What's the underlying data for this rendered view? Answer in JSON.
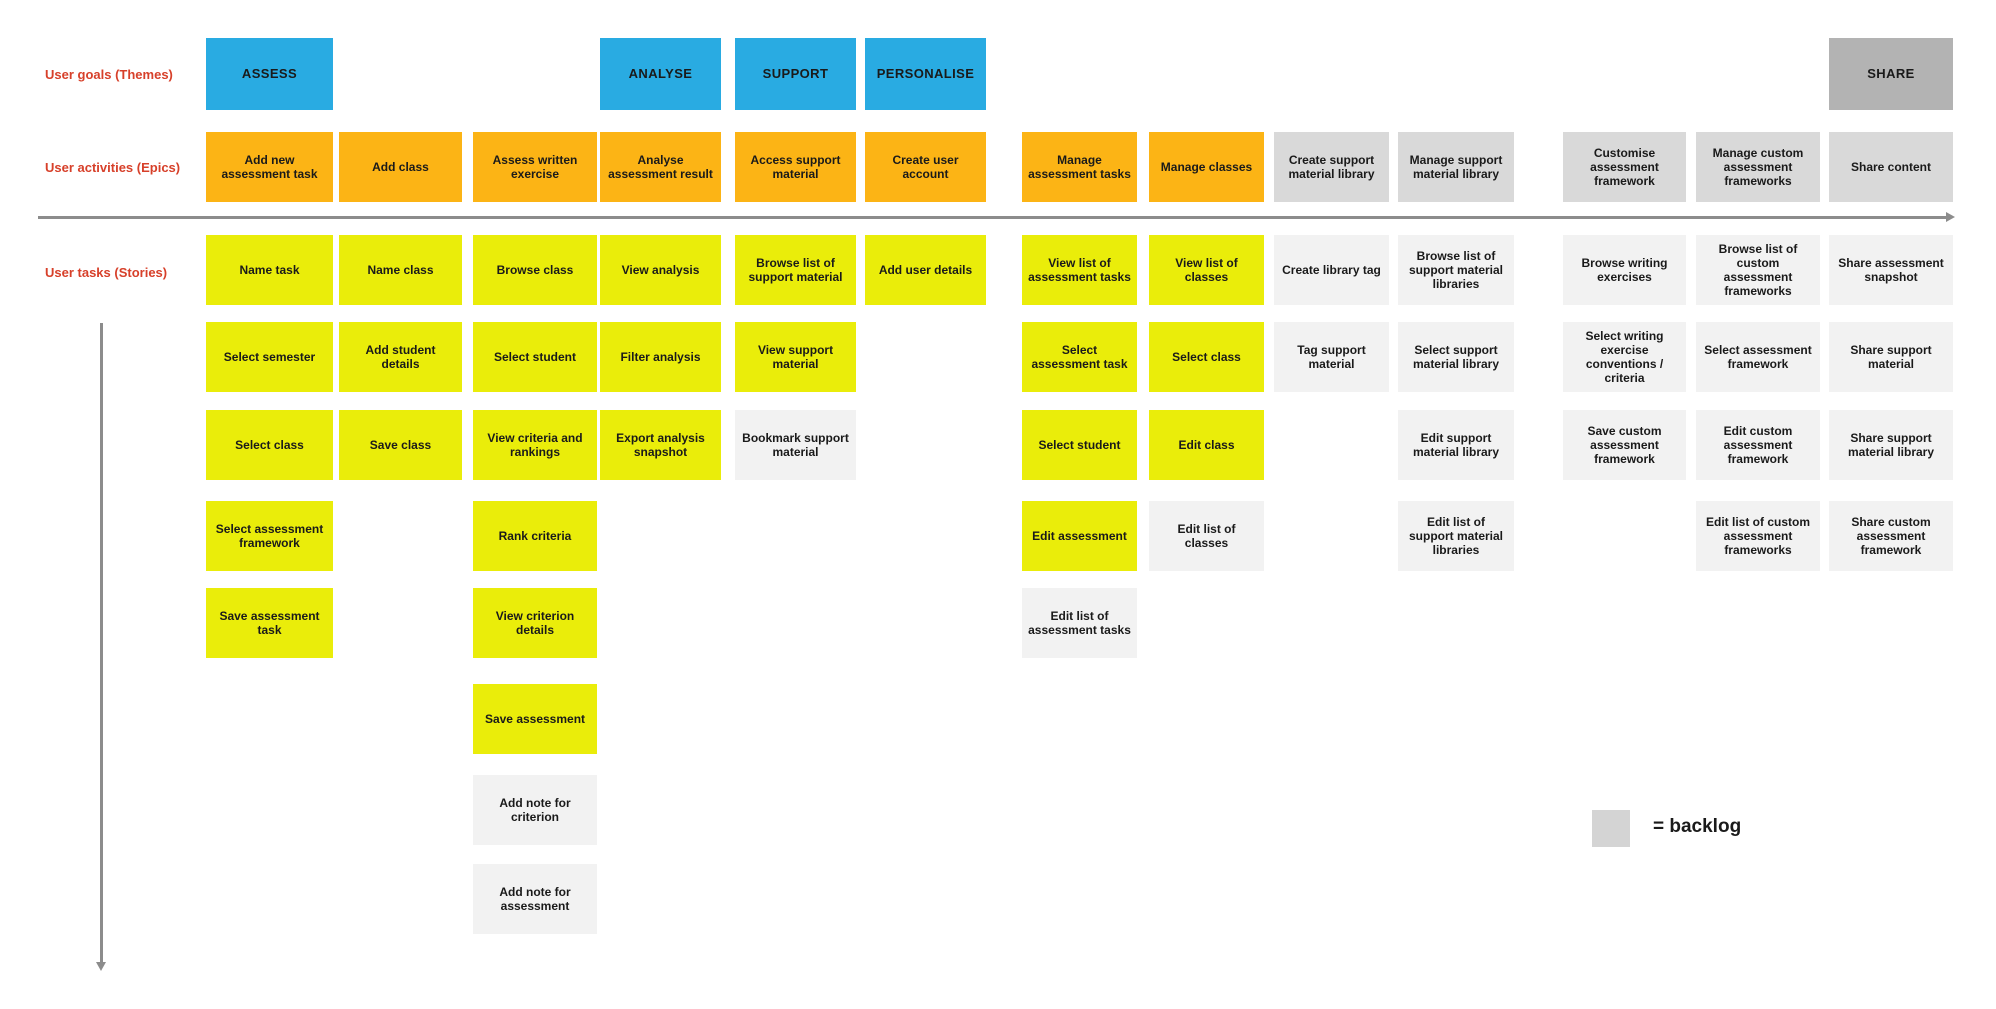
{
  "row_labels": {
    "goals": "User goals (Themes)",
    "activities": "User activities (Epics)",
    "tasks": "User tasks (Stories)"
  },
  "legend": {
    "text": "= backlog"
  },
  "colors": {
    "goal_active": "#29abe2",
    "goal_backlog": "#b3b3b3",
    "epic_active": "#fcb415",
    "epic_backlog": "#d9d9d9",
    "story_active": "#eaed0a",
    "story_backlog": "#f2f2f2",
    "label_red": "#d7402a",
    "arrow_gray": "#8c8c8c",
    "legend_gray": "#d4d4d4"
  },
  "goals": [
    {
      "label": "ASSESS",
      "col": 1,
      "backlog": false
    },
    {
      "label": "ANALYSE",
      "col": 4,
      "backlog": false
    },
    {
      "label": "SUPPORT",
      "col": 5,
      "backlog": false
    },
    {
      "label": "PERSONALISE",
      "col": 6,
      "backlog": false
    },
    {
      "label": "SHARE",
      "col": 13,
      "backlog": true
    }
  ],
  "epics": [
    {
      "label": "Add new assessment task",
      "col": 1,
      "backlog": false
    },
    {
      "label": "Add class",
      "col": 2,
      "backlog": false
    },
    {
      "label": "Assess written exercise",
      "col": 3,
      "backlog": false
    },
    {
      "label": "Analyse assessment result",
      "col": 4,
      "backlog": false
    },
    {
      "label": "Access support material",
      "col": 5,
      "backlog": false
    },
    {
      "label": "Create user account",
      "col": 6,
      "backlog": false
    },
    {
      "label": "Manage assessment tasks",
      "col": 7,
      "backlog": false
    },
    {
      "label": "Manage classes",
      "col": 8,
      "backlog": false
    },
    {
      "label": "Create support material library",
      "col": 9,
      "backlog": true
    },
    {
      "label": "Manage support material library",
      "col": 10,
      "backlog": true
    },
    {
      "label": "Customise assessment framework",
      "col": 11,
      "backlog": true
    },
    {
      "label": "Manage custom assessment frameworks",
      "col": 12,
      "backlog": true
    },
    {
      "label": "Share content",
      "col": 13,
      "backlog": true
    }
  ],
  "stories": [
    {
      "label": "Name task",
      "col": 1,
      "row": 1,
      "backlog": false
    },
    {
      "label": "Select semester",
      "col": 1,
      "row": 2,
      "backlog": false
    },
    {
      "label": "Select class",
      "col": 1,
      "row": 3,
      "backlog": false
    },
    {
      "label": "Select assessment framework",
      "col": 1,
      "row": 4,
      "backlog": false
    },
    {
      "label": "Save assessment task",
      "col": 1,
      "row": 5,
      "backlog": false
    },
    {
      "label": "Name class",
      "col": 2,
      "row": 1,
      "backlog": false
    },
    {
      "label": "Add student details",
      "col": 2,
      "row": 2,
      "backlog": false
    },
    {
      "label": "Save class",
      "col": 2,
      "row": 3,
      "backlog": false
    },
    {
      "label": "Browse class",
      "col": 3,
      "row": 1,
      "backlog": false
    },
    {
      "label": "Select student",
      "col": 3,
      "row": 2,
      "backlog": false
    },
    {
      "label": "View criteria and rankings",
      "col": 3,
      "row": 3,
      "backlog": false
    },
    {
      "label": "Rank criteria",
      "col": 3,
      "row": 4,
      "backlog": false
    },
    {
      "label": "View criterion details",
      "col": 3,
      "row": 5,
      "backlog": false
    },
    {
      "label": "Save assessment",
      "col": 3,
      "row": 6,
      "backlog": false
    },
    {
      "label": "Add note for criterion",
      "col": 3,
      "row": 7,
      "backlog": true
    },
    {
      "label": "Add note for assessment",
      "col": 3,
      "row": 8,
      "backlog": true
    },
    {
      "label": "View analysis",
      "col": 4,
      "row": 1,
      "backlog": false
    },
    {
      "label": "Filter analysis",
      "col": 4,
      "row": 2,
      "backlog": false
    },
    {
      "label": "Export analysis snapshot",
      "col": 4,
      "row": 3,
      "backlog": false
    },
    {
      "label": "Browse list of support material",
      "col": 5,
      "row": 1,
      "backlog": false
    },
    {
      "label": "View support material",
      "col": 5,
      "row": 2,
      "backlog": false
    },
    {
      "label": "Bookmark support material",
      "col": 5,
      "row": 3,
      "backlog": true
    },
    {
      "label": "Add user details",
      "col": 6,
      "row": 1,
      "backlog": false
    },
    {
      "label": "View list of assessment tasks",
      "col": 7,
      "row": 1,
      "backlog": false
    },
    {
      "label": "Select assessment task",
      "col": 7,
      "row": 2,
      "backlog": false
    },
    {
      "label": "Select student",
      "col": 7,
      "row": 3,
      "backlog": false
    },
    {
      "label": "Edit assessment",
      "col": 7,
      "row": 4,
      "backlog": false
    },
    {
      "label": "Edit list of assessment tasks",
      "col": 7,
      "row": 5,
      "backlog": true
    },
    {
      "label": "View list of classes",
      "col": 8,
      "row": 1,
      "backlog": false
    },
    {
      "label": "Select class",
      "col": 8,
      "row": 2,
      "backlog": false
    },
    {
      "label": "Edit class",
      "col": 8,
      "row": 3,
      "backlog": false
    },
    {
      "label": "Edit list of classes",
      "col": 8,
      "row": 4,
      "backlog": true
    },
    {
      "label": "Create library tag",
      "col": 9,
      "row": 1,
      "backlog": true
    },
    {
      "label": "Tag support material",
      "col": 9,
      "row": 2,
      "backlog": true
    },
    {
      "label": "Browse list of support material libraries",
      "col": 10,
      "row": 1,
      "backlog": true
    },
    {
      "label": "Select support material library",
      "col": 10,
      "row": 2,
      "backlog": true
    },
    {
      "label": "Edit support material library",
      "col": 10,
      "row": 3,
      "backlog": true
    },
    {
      "label": "Edit list of support material libraries",
      "col": 10,
      "row": 4,
      "backlog": true
    },
    {
      "label": "Browse writing exercises",
      "col": 11,
      "row": 1,
      "backlog": true
    },
    {
      "label": "Select writing exercise conventions / criteria",
      "col": 11,
      "row": 2,
      "backlog": true
    },
    {
      "label": "Save custom assessment framework",
      "col": 11,
      "row": 3,
      "backlog": true
    },
    {
      "label": "Browse list of custom assessment frameworks",
      "col": 12,
      "row": 1,
      "backlog": true
    },
    {
      "label": "Select assessment framework",
      "col": 12,
      "row": 2,
      "backlog": true
    },
    {
      "label": "Edit custom assessment framework",
      "col": 12,
      "row": 3,
      "backlog": true
    },
    {
      "label": "Edit list of custom assessment frameworks",
      "col": 12,
      "row": 4,
      "backlog": true
    },
    {
      "label": "Share assessment snapshot",
      "col": 13,
      "row": 1,
      "backlog": true
    },
    {
      "label": "Share support material",
      "col": 13,
      "row": 2,
      "backlog": true
    },
    {
      "label": "Share support material library",
      "col": 13,
      "row": 3,
      "backlog": true
    },
    {
      "label": "Share custom assessment framework",
      "col": 13,
      "row": 4,
      "backlog": true
    }
  ]
}
